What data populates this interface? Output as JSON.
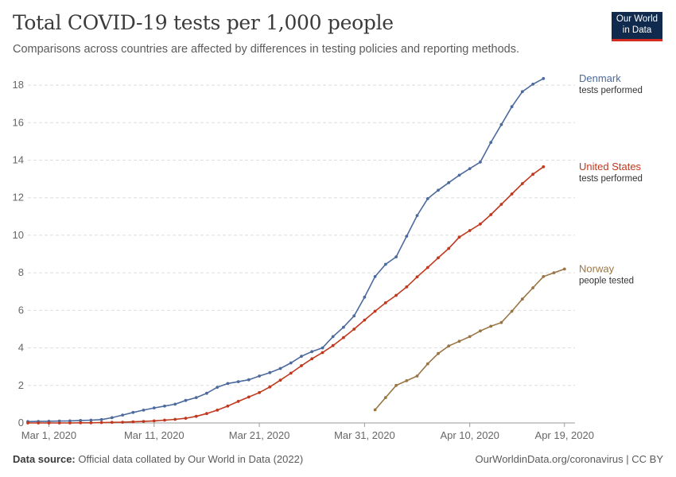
{
  "header": {
    "title": "Total COVID-19 tests per 1,000 people",
    "subtitle": "Comparisons across countries are affected by differences in testing policies and reporting methods."
  },
  "logo": {
    "line1": "Our World",
    "line2": "in Data"
  },
  "footer": {
    "source_label": "Data source:",
    "source_text": "Official data collated by Our World in Data (2022)",
    "url": "OurWorldinData.org/coronavirus | CC BY"
  },
  "chart_data": {
    "type": "line",
    "x_start": "2020-02-28",
    "x_end": "2020-04-20",
    "xticks": [
      {
        "label": "Mar 1, 2020",
        "date": "2020-03-01"
      },
      {
        "label": "Mar 11, 2020",
        "date": "2020-03-11"
      },
      {
        "label": "Mar 21, 2020",
        "date": "2020-03-21"
      },
      {
        "label": "Mar 31, 2020",
        "date": "2020-03-31"
      },
      {
        "label": "Apr 10, 2020",
        "date": "2020-04-10"
      },
      {
        "label": "Apr 19, 2020",
        "date": "2020-04-19"
      }
    ],
    "yticks": [
      0,
      2,
      4,
      6,
      8,
      10,
      12,
      14,
      16,
      18
    ],
    "ylim": [
      0,
      18.3
    ],
    "grid": true,
    "series": [
      {
        "name": "Denmark",
        "sublabel": "tests performed",
        "color": "#4c6a9c",
        "start_date": "2020-02-28",
        "values": [
          0.07,
          0.08,
          0.09,
          0.1,
          0.11,
          0.13,
          0.15,
          0.18,
          0.28,
          0.42,
          0.56,
          0.68,
          0.8,
          0.9,
          1.0,
          1.2,
          1.35,
          1.58,
          1.9,
          2.1,
          2.2,
          2.3,
          2.5,
          2.68,
          2.9,
          3.2,
          3.55,
          3.8,
          4.0,
          4.6,
          5.1,
          5.7,
          6.7,
          7.8,
          8.45,
          8.85,
          9.95,
          11.05,
          11.95,
          12.4,
          12.8,
          13.2,
          13.55,
          13.9,
          14.95,
          15.9,
          16.85,
          17.65,
          18.05,
          18.35
        ]
      },
      {
        "name": "United States",
        "sublabel": "tests performed",
        "color": "#c0391e",
        "start_date": "2020-02-28",
        "values": [
          0.0,
          0.0,
          0.0,
          0.0,
          0.0,
          0.01,
          0.01,
          0.02,
          0.03,
          0.04,
          0.06,
          0.08,
          0.11,
          0.15,
          0.19,
          0.25,
          0.35,
          0.5,
          0.68,
          0.9,
          1.15,
          1.38,
          1.62,
          1.92,
          2.28,
          2.65,
          3.05,
          3.42,
          3.75,
          4.12,
          4.55,
          5.0,
          5.48,
          5.95,
          6.4,
          6.8,
          7.25,
          7.78,
          8.28,
          8.8,
          9.3,
          9.9,
          10.25,
          10.6,
          11.1,
          11.65,
          12.2,
          12.75,
          13.25,
          13.65
        ]
      },
      {
        "name": "Norway",
        "sublabel": "people tested",
        "color": "#9a7544",
        "start_date": "2020-04-01",
        "values": [
          0.7,
          1.35,
          2.0,
          2.25,
          2.5,
          3.15,
          3.7,
          4.1,
          4.35,
          4.6,
          4.9,
          5.15,
          5.35,
          5.95,
          6.6,
          7.2,
          7.8,
          8.0,
          8.2
        ]
      }
    ]
  }
}
